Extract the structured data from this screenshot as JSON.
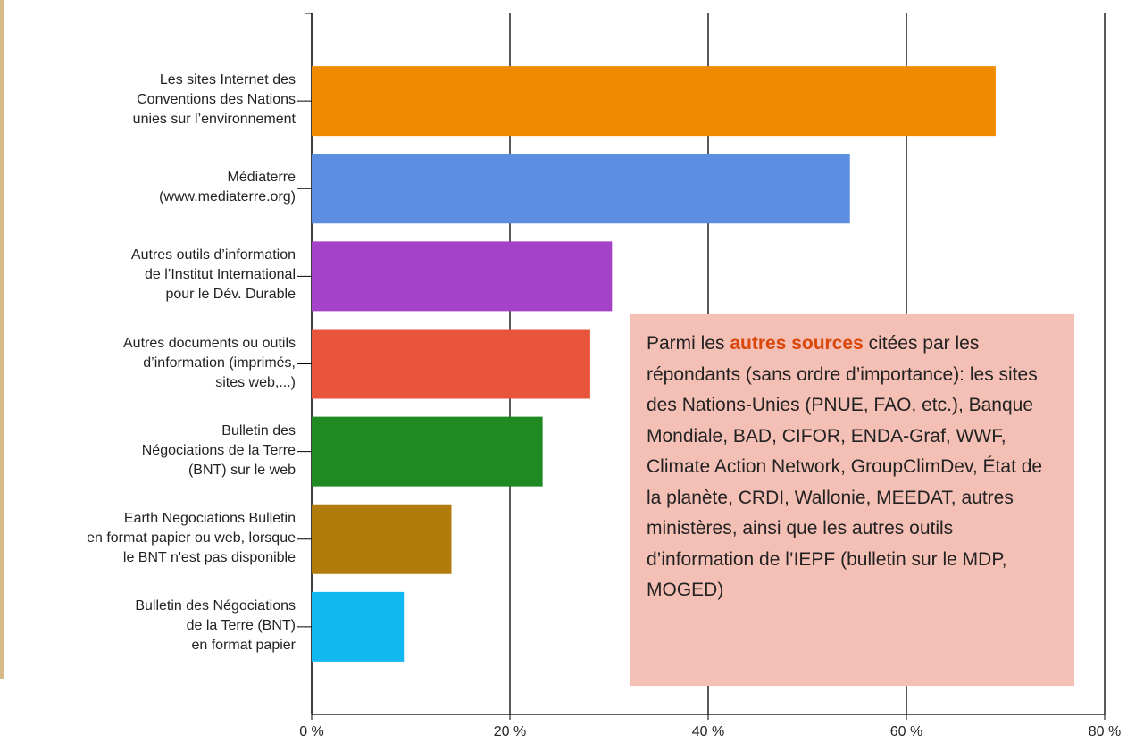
{
  "chart_data": {
    "type": "bar",
    "orientation": "horizontal",
    "categories": [
      "Les sites Internet des\nConventions des Nations\nunies sur l’environnement",
      "Médiaterre\n(www.mediaterre.org)",
      "Autres outils d’information\nde l’Institut International\npour le Dév. Durable",
      "Autres documents ou outils\nd’information (imprimés,\nsites web,...)",
      "Bulletin des\nNégociations de la Terre\n(BNT) sur le web",
      "Earth Negociations Bulletin\nen format papier ou web, lorsque\nle BNT n'est pas disponible",
      "Bulletin des Négociations\nde la Terre (BNT)\nen format papier"
    ],
    "values": [
      69.0,
      54.3,
      30.3,
      28.1,
      23.3,
      14.1,
      9.3
    ],
    "colors": [
      "#f08a00",
      "#5b8de0",
      "#a443c8",
      "#e9553a",
      "#1f8a22",
      "#b27c0c",
      "#12b8f2"
    ],
    "xlim": [
      0,
      80
    ],
    "xticks": [
      {
        "value": 0,
        "label": "0 %"
      },
      {
        "value": 20,
        "label": "20 %"
      },
      {
        "value": 40,
        "label": "40 %"
      },
      {
        "value": 60,
        "label": "60 %"
      },
      {
        "value": 80,
        "label": "80 %"
      }
    ],
    "grid": true,
    "annotation": {
      "before": "Parmi les ",
      "highlight": "autres sources",
      "after": " citées par les répondants (sans ordre d’importance): les sites des Nations-Unies (PNUE, FAO, etc.), Banque Mondiale, BAD, CIFOR, ENDA-Graf, WWF, Climate Action Network, GroupClimDev, État de la planète, CRDI, Wallonie, MEEDAT, autres ministères, ainsi que les autres outils d’information de l’IEPF (bulletin sur le MDP, MOGED)"
    }
  }
}
